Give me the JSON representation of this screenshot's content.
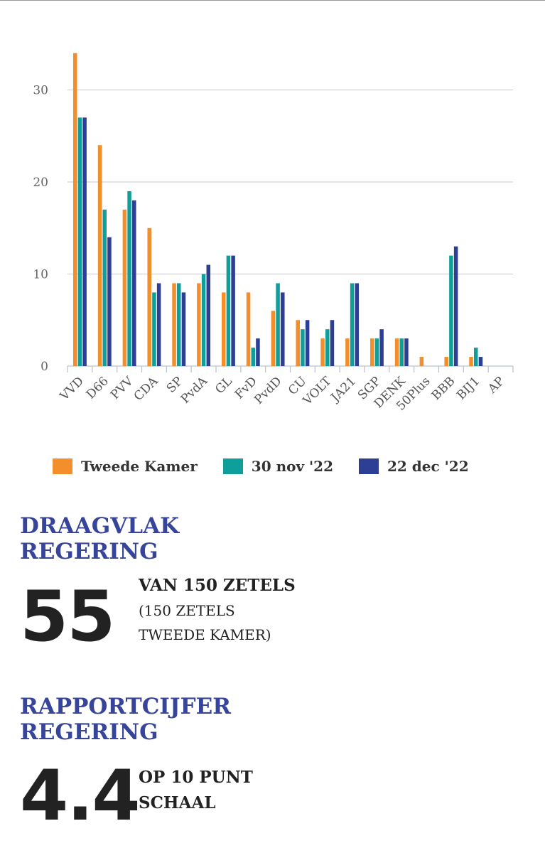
{
  "chart_data": {
    "type": "bar",
    "categories": [
      "VVD",
      "D66",
      "PVV",
      "CDA",
      "SP",
      "PvdA",
      "GL",
      "FvD",
      "PvdD",
      "CU",
      "VOLT",
      "JA21",
      "SGP",
      "DENK",
      "50Plus",
      "BBB",
      "BIJ1",
      "AP"
    ],
    "series": [
      {
        "name": "Tweede Kamer",
        "color": "#f28e2b",
        "values": [
          34,
          24,
          17,
          15,
          9,
          9,
          8,
          8,
          6,
          5,
          3,
          3,
          3,
          3,
          1,
          1,
          1,
          0
        ]
      },
      {
        "name": "30 nov '22",
        "color": "#0f9e9a",
        "values": [
          27,
          17,
          19,
          8,
          9,
          10,
          12,
          2,
          9,
          4,
          4,
          9,
          3,
          3,
          0,
          12,
          2,
          0
        ]
      },
      {
        "name": "22 dec '22",
        "color": "#2d3f94",
        "values": [
          27,
          14,
          18,
          9,
          8,
          11,
          12,
          3,
          8,
          5,
          5,
          9,
          4,
          3,
          0,
          13,
          1,
          0
        ]
      }
    ],
    "yticks": [
      "0",
      "10",
      "20",
      "30"
    ],
    "ylim": [
      0,
      40
    ],
    "grid": true,
    "legend_position": "bottom"
  },
  "draagvlak": {
    "title_line1": "DRAAGVLAK",
    "title_line2": "REGERING",
    "value": "55",
    "line1": "VAN 150 ZETELS",
    "line2": "(150 ZETELS",
    "line3": "TWEEDE KAMER)"
  },
  "rapportcijfer": {
    "title_line1": "RAPPORTCIJFER",
    "title_line2": "REGERING",
    "value": "4.4",
    "line1": "OP 10 PUNT",
    "line2": "SCHAAL"
  }
}
